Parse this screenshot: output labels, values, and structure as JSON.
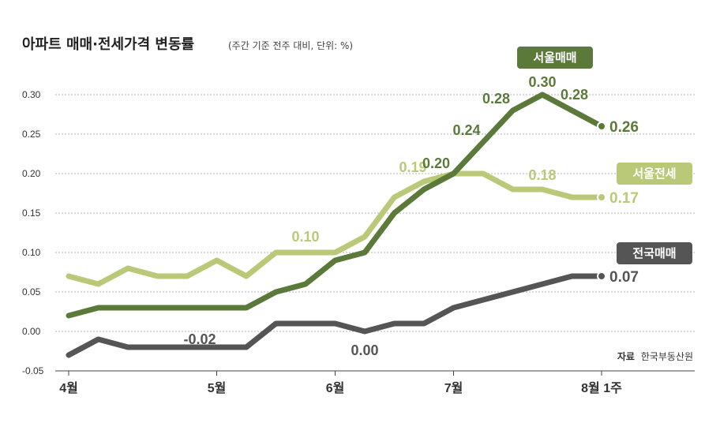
{
  "title": "아파트 매매·전세가격 변동률",
  "subtitle": "(주간 기준 전주 대비, 단위: %)",
  "source_label": "자료",
  "source_text": "한국부동산원",
  "chart_data": {
    "type": "line",
    "ylim": [
      -0.05,
      0.3
    ],
    "yticks": [
      "0.30",
      "0.25",
      "0.20",
      "0.15",
      "0.10",
      "0.05",
      "0.00",
      "-0.05"
    ],
    "ytick_values": [
      0.3,
      0.25,
      0.2,
      0.15,
      0.1,
      0.05,
      0.0,
      -0.05
    ],
    "x_tick_labels": [
      {
        "label": "4월",
        "week": 0
      },
      {
        "label": "5월",
        "week": 5
      },
      {
        "label": "6월",
        "week": 9
      },
      {
        "label": "7월",
        "week": 13
      },
      {
        "label": "8월 1주",
        "week": 18
      }
    ],
    "grid": true,
    "series": [
      {
        "name": "서울전세",
        "color": "#b9c978",
        "values": [
          0.07,
          0.06,
          0.08,
          0.07,
          0.07,
          0.09,
          0.07,
          0.1,
          0.1,
          0.1,
          0.12,
          0.17,
          0.19,
          0.2,
          0.2,
          0.18,
          0.18,
          0.17,
          0.17
        ],
        "labels": [
          {
            "week": 8,
            "text": "0.10"
          },
          {
            "week": 12,
            "text": "0.19"
          },
          {
            "week": 16,
            "text": "0.18"
          }
        ],
        "end_label": "0.17"
      },
      {
        "name": "서울매매",
        "color": "#5b7a3a",
        "values": [
          0.02,
          0.03,
          0.03,
          0.03,
          0.03,
          0.03,
          0.03,
          0.05,
          0.06,
          0.09,
          0.1,
          0.15,
          0.18,
          0.2,
          0.24,
          0.28,
          0.3,
          0.28,
          0.26
        ],
        "labels": [
          {
            "week": 13,
            "text": "0.20"
          },
          {
            "week": 14,
            "text": "0.24"
          },
          {
            "week": 15,
            "text": "0.28"
          },
          {
            "week": 16,
            "text": "0.30"
          },
          {
            "week": 17,
            "text": "0.28"
          }
        ],
        "end_label": "0.26"
      },
      {
        "name": "전국매매",
        "color": "#555555",
        "values": [
          -0.03,
          -0.01,
          -0.02,
          -0.02,
          -0.02,
          -0.02,
          -0.02,
          0.01,
          0.01,
          0.01,
          0.0,
          0.01,
          0.01,
          0.03,
          0.04,
          0.05,
          0.06,
          0.07,
          0.07
        ],
        "labels": [
          {
            "week": 4,
            "text": "-0.02"
          },
          {
            "week": 10,
            "text": "0.00"
          }
        ],
        "end_label": "0.07"
      }
    ]
  }
}
